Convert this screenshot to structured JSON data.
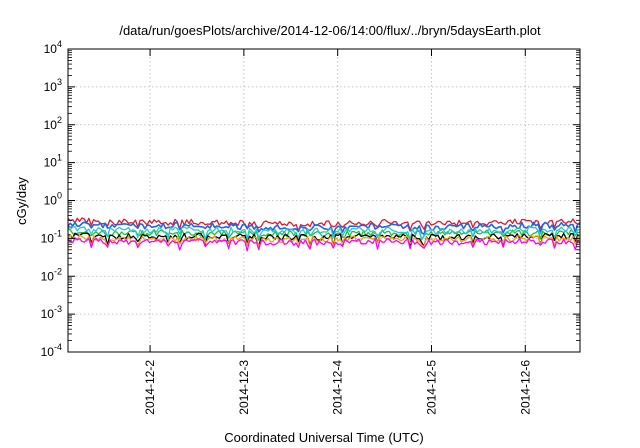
{
  "chart_data": {
    "type": "line",
    "title": "/data/run/goesPlots/archive/2014-12-06/14:00/flux/../bryn/5daysEarth.plot",
    "xlabel": "Coordinated Universal Time (UTC)",
    "ylabel": "cGy/day",
    "yscale": "log",
    "ylim": [
      0.0001,
      10000
    ],
    "y_ticks": [
      {
        "base": "10",
        "exp": "-4"
      },
      {
        "base": "10",
        "exp": "-3"
      },
      {
        "base": "10",
        "exp": "-2"
      },
      {
        "base": "10",
        "exp": "-1"
      },
      {
        "base": "10",
        "exp": "0"
      },
      {
        "base": "10",
        "exp": "1"
      },
      {
        "base": "10",
        "exp": "2"
      },
      {
        "base": "10",
        "exp": "3"
      },
      {
        "base": "10",
        "exp": "4"
      }
    ],
    "xlim": [
      "2014-12-01T03:00",
      "2014-12-06T14:00"
    ],
    "x_ticks": [
      "2014-12-2",
      "2014-12-3",
      "2014-12-4",
      "2014-12-5",
      "2014-12-6"
    ],
    "grid": true,
    "legend": false,
    "series": [
      {
        "color": "#e4172f",
        "x": [
          "2014-12-01T03:00",
          "2014-12-01T12:00",
          "2014-12-02T00:00",
          "2014-12-02T12:00",
          "2014-12-03T00:00",
          "2014-12-03T12:00",
          "2014-12-04T00:00",
          "2014-12-04T12:00",
          "2014-12-05T00:00",
          "2014-12-05T12:00",
          "2014-12-06T00:00",
          "2014-12-06T14:00"
        ],
        "values": [
          0.3,
          0.28,
          0.26,
          0.27,
          0.25,
          0.24,
          0.25,
          0.27,
          0.24,
          0.26,
          0.27,
          0.28
        ]
      },
      {
        "color": "#2166e5",
        "x": [
          "2014-12-01T03:00",
          "2014-12-01T12:00",
          "2014-12-02T00:00",
          "2014-12-02T12:00",
          "2014-12-03T00:00",
          "2014-12-03T12:00",
          "2014-12-04T00:00",
          "2014-12-04T12:00",
          "2014-12-05T00:00",
          "2014-12-05T12:00",
          "2014-12-06T00:00",
          "2014-12-06T14:00"
        ],
        "values": [
          0.24,
          0.22,
          0.21,
          0.22,
          0.2,
          0.19,
          0.2,
          0.21,
          0.19,
          0.21,
          0.22,
          0.22
        ]
      },
      {
        "color": "#1fbf3a",
        "x": [
          "2014-12-01T03:00",
          "2014-12-01T12:00",
          "2014-12-02T00:00",
          "2014-12-02T12:00",
          "2014-12-03T00:00",
          "2014-12-03T12:00",
          "2014-12-04T00:00",
          "2014-12-04T12:00",
          "2014-12-05T00:00",
          "2014-12-05T12:00",
          "2014-12-06T00:00",
          "2014-12-06T14:00"
        ],
        "values": [
          0.15,
          0.14,
          0.14,
          0.14,
          0.13,
          0.13,
          0.13,
          0.14,
          0.13,
          0.14,
          0.14,
          0.14
        ]
      },
      {
        "color": "#28c8c8",
        "x": [
          "2014-12-01T03:00",
          "2014-12-01T12:00",
          "2014-12-02T00:00",
          "2014-12-02T12:00",
          "2014-12-03T00:00",
          "2014-12-03T12:00",
          "2014-12-04T00:00",
          "2014-12-04T12:00",
          "2014-12-05T00:00",
          "2014-12-05T12:00",
          "2014-12-06T00:00",
          "2014-12-06T14:00"
        ],
        "values": [
          0.18,
          0.17,
          0.16,
          0.17,
          0.16,
          0.15,
          0.16,
          0.17,
          0.15,
          0.16,
          0.17,
          0.17
        ]
      },
      {
        "color": "#000000",
        "x": [
          "2014-12-01T03:00",
          "2014-12-01T12:00",
          "2014-12-02T00:00",
          "2014-12-02T12:00",
          "2014-12-03T00:00",
          "2014-12-03T12:00",
          "2014-12-04T00:00",
          "2014-12-04T12:00",
          "2014-12-05T00:00",
          "2014-12-05T12:00",
          "2014-12-06T00:00",
          "2014-12-06T14:00"
        ],
        "values": [
          0.12,
          0.115,
          0.11,
          0.115,
          0.11,
          0.105,
          0.11,
          0.115,
          0.105,
          0.11,
          0.115,
          0.115
        ]
      },
      {
        "color": "#f2a20c",
        "x": [
          "2014-12-01T03:00",
          "2014-12-01T12:00",
          "2014-12-02T00:00",
          "2014-12-02T12:00",
          "2014-12-03T00:00",
          "2014-12-03T12:00",
          "2014-12-04T00:00",
          "2014-12-04T12:00",
          "2014-12-05T00:00",
          "2014-12-05T12:00",
          "2014-12-06T00:00",
          "2014-12-06T14:00"
        ],
        "values": [
          0.105,
          0.1,
          0.097,
          0.1,
          0.096,
          0.093,
          0.096,
          0.1,
          0.093,
          0.097,
          0.1,
          0.1
        ]
      },
      {
        "color": "#ff00ff",
        "x": [
          "2014-12-01T03:00",
          "2014-12-01T12:00",
          "2014-12-02T00:00",
          "2014-12-02T12:00",
          "2014-12-03T00:00",
          "2014-12-03T12:00",
          "2014-12-04T00:00",
          "2014-12-04T12:00",
          "2014-12-05T00:00",
          "2014-12-05T12:00",
          "2014-12-06T00:00",
          "2014-12-06T14:00"
        ],
        "values": [
          0.09,
          0.085,
          0.082,
          0.085,
          0.081,
          0.078,
          0.081,
          0.085,
          0.078,
          0.082,
          0.085,
          0.085
        ]
      }
    ]
  }
}
